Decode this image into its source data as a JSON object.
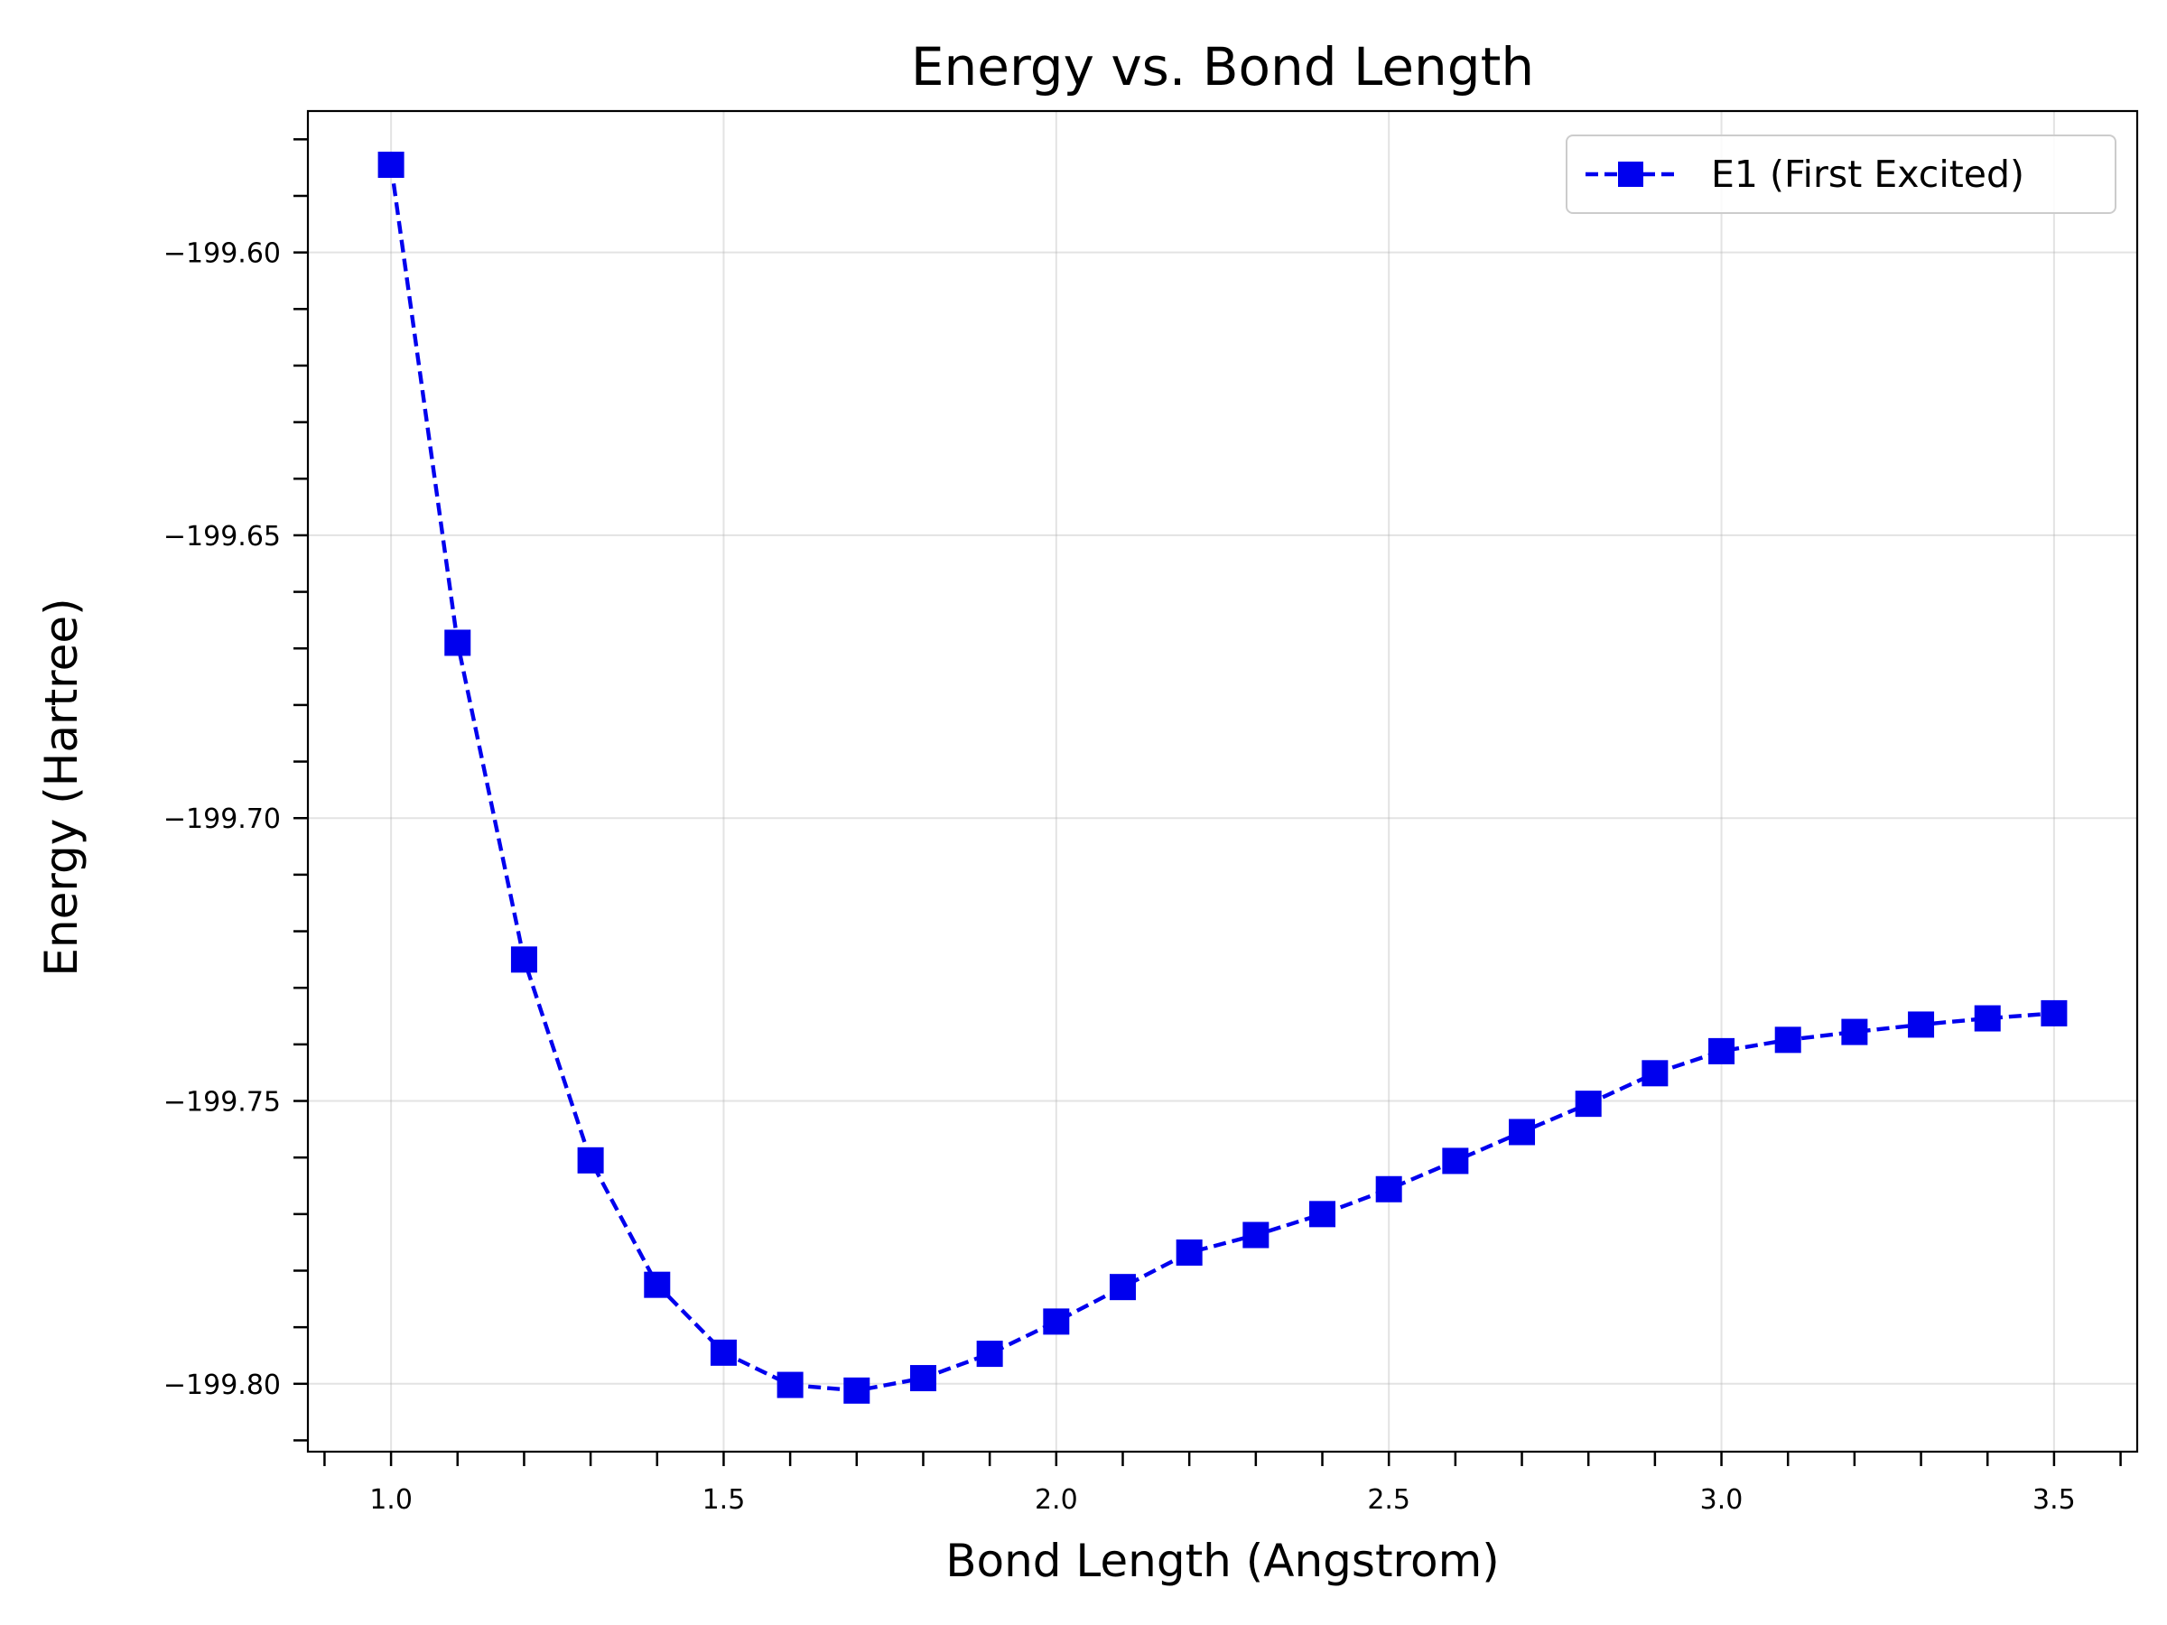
{
  "chart_data": {
    "type": "line",
    "title": "Energy vs. Bond Length",
    "xlabel": "Bond Length (Angstrom)",
    "ylabel": "Energy (Hartree)",
    "xlim": [
      0.875,
      3.625
    ],
    "ylim": [
      -199.812,
      -199.575
    ],
    "x_ticks": [
      1.0,
      1.5,
      2.0,
      2.5,
      3.0,
      3.5
    ],
    "x_tick_labels": [
      "1.0",
      "1.5",
      "2.0",
      "2.5",
      "3.0",
      "3.5"
    ],
    "x_minor_ticks": [
      0.9,
      1.0,
      1.1,
      1.2,
      1.3,
      1.4,
      1.5,
      1.6,
      1.7,
      1.8,
      1.9,
      2.0,
      2.1,
      2.2,
      2.3,
      2.4,
      2.5,
      2.6,
      2.7,
      2.8,
      2.9,
      3.0,
      3.1,
      3.2,
      3.3,
      3.4,
      3.5,
      3.6
    ],
    "y_ticks": [
      -199.8,
      -199.75,
      -199.7,
      -199.65,
      -199.6
    ],
    "y_tick_labels": [
      "−199.80",
      "−199.75",
      "−199.70",
      "−199.65",
      "−199.60"
    ],
    "y_minor_ticks": [
      -199.81,
      -199.8,
      -199.79,
      -199.78,
      -199.77,
      -199.76,
      -199.75,
      -199.74,
      -199.73,
      -199.72,
      -199.71,
      -199.7,
      -199.69,
      -199.68,
      -199.67,
      -199.66,
      -199.65,
      -199.64,
      -199.63,
      -199.62,
      -199.61,
      -199.6,
      -199.59,
      -199.58
    ],
    "grid": true,
    "legend_position": "top-right",
    "series": [
      {
        "name": "E1 (First Excited)",
        "color": "#0000ee",
        "line_style": "dashed",
        "marker": "square",
        "x": [
          1.0,
          1.1,
          1.2,
          1.3,
          1.4,
          1.5,
          1.6,
          1.7,
          1.8,
          1.9,
          2.0,
          2.1,
          2.2,
          2.3,
          2.4,
          2.5,
          2.6,
          2.7,
          2.8,
          2.9,
          3.0,
          3.1,
          3.2,
          3.3,
          3.4,
          3.5
        ],
        "y": [
          -199.5845,
          -199.669,
          -199.725,
          -199.7605,
          -199.7825,
          -199.7945,
          -199.8002,
          -199.8012,
          -199.799,
          -199.7947,
          -199.789,
          -199.7829,
          -199.7768,
          -199.7737,
          -199.77,
          -199.7656,
          -199.7606,
          -199.7555,
          -199.7505,
          -199.7451,
          -199.7412,
          -199.7392,
          -199.7378,
          -199.7365,
          -199.7354,
          -199.7345
        ]
      }
    ]
  }
}
